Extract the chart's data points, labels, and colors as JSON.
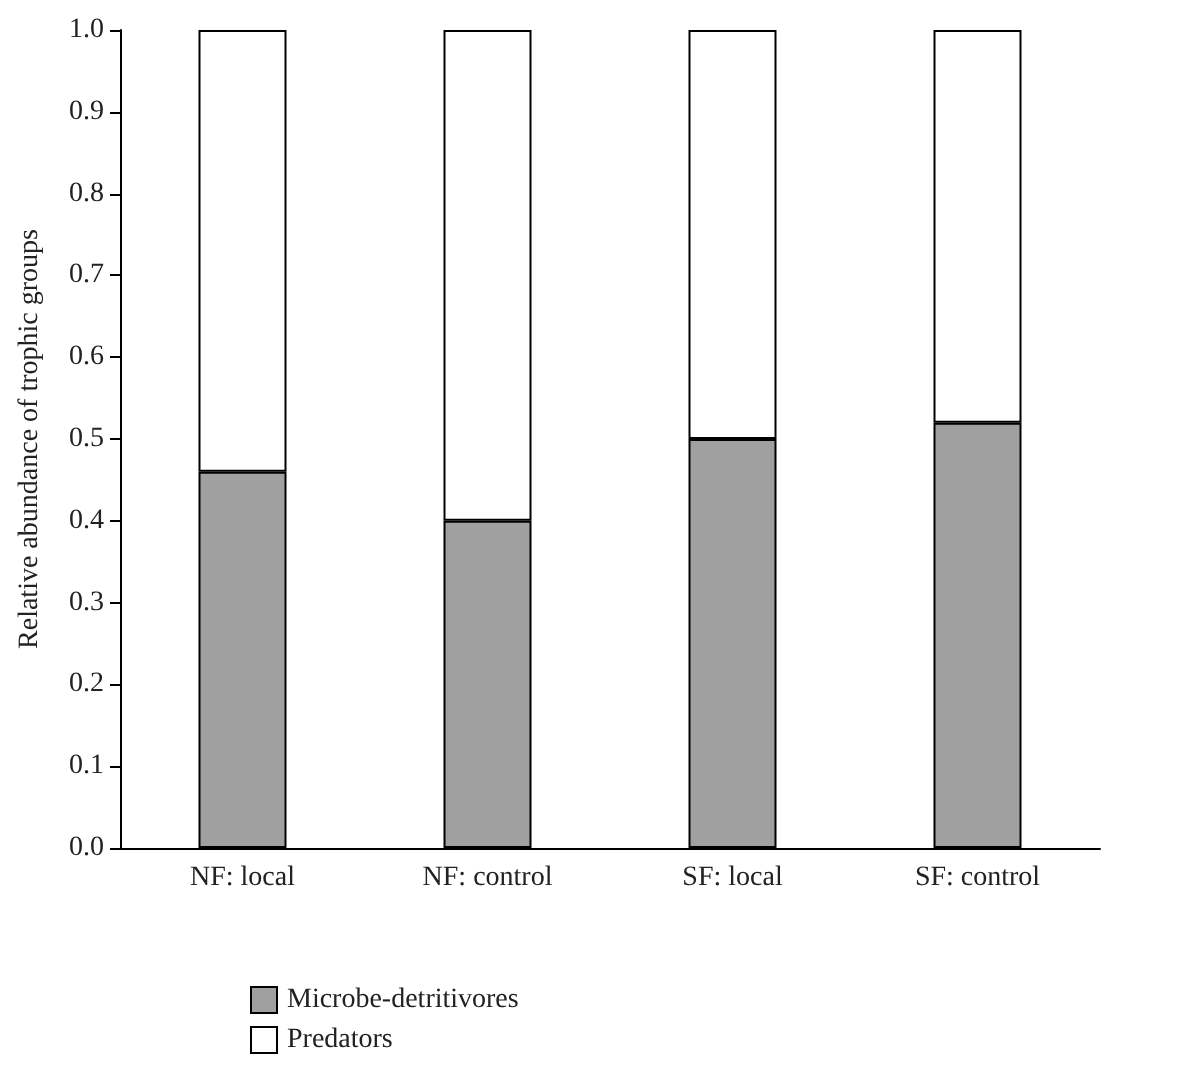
{
  "chart_data": {
    "type": "bar",
    "stacked": true,
    "ylabel": "Relative abundance of trophic groups",
    "categories": [
      "NF: local",
      "NF: control",
      "SF: local",
      "SF: control"
    ],
    "series": [
      {
        "name": "Microbe-detritivores",
        "color": "#a0a0a0",
        "values": [
          0.46,
          0.4,
          0.5,
          0.52
        ]
      },
      {
        "name": "Predators",
        "color": "#ffffff",
        "values": [
          0.54,
          0.6,
          0.5,
          0.48
        ]
      }
    ],
    "ylim": [
      0,
      1
    ],
    "yticks": [
      {
        "value": 0,
        "label": "0.0"
      },
      0.1,
      0.2,
      0.3,
      0.4,
      0.5,
      0.6,
      0.7,
      0.8,
      0.9,
      {
        "value": 1,
        "label": "1.0"
      }
    ],
    "grid": false,
    "legend": "bottom left"
  }
}
